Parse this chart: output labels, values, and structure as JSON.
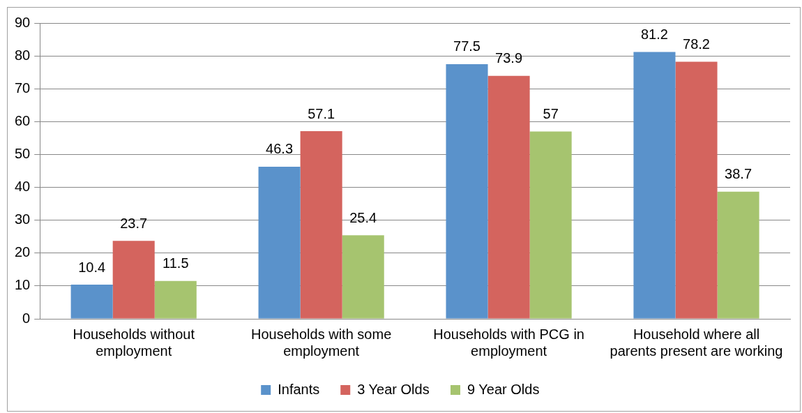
{
  "chart_data": {
    "type": "bar",
    "categories": [
      "Households without employment",
      "Households with some employment",
      "Households with PCG in employment",
      "Household where all parents present are working"
    ],
    "series": [
      {
        "name": "Infants",
        "color": "#5a92cb",
        "values": [
          10.4,
          46.3,
          77.5,
          81.2
        ]
      },
      {
        "name": "3 Year Olds",
        "color": "#d4645e",
        "values": [
          23.7,
          57.1,
          73.9,
          78.2
        ]
      },
      {
        "name": "9 Year Olds",
        "color": "#a6c46f",
        "values": [
          11.5,
          25.4,
          57,
          38.7
        ]
      }
    ],
    "ylim": [
      0,
      90
    ],
    "yticks": [
      0,
      10,
      20,
      30,
      40,
      50,
      60,
      70,
      80,
      90
    ],
    "grid": "y",
    "legend": "bottom",
    "data_labels": true
  }
}
